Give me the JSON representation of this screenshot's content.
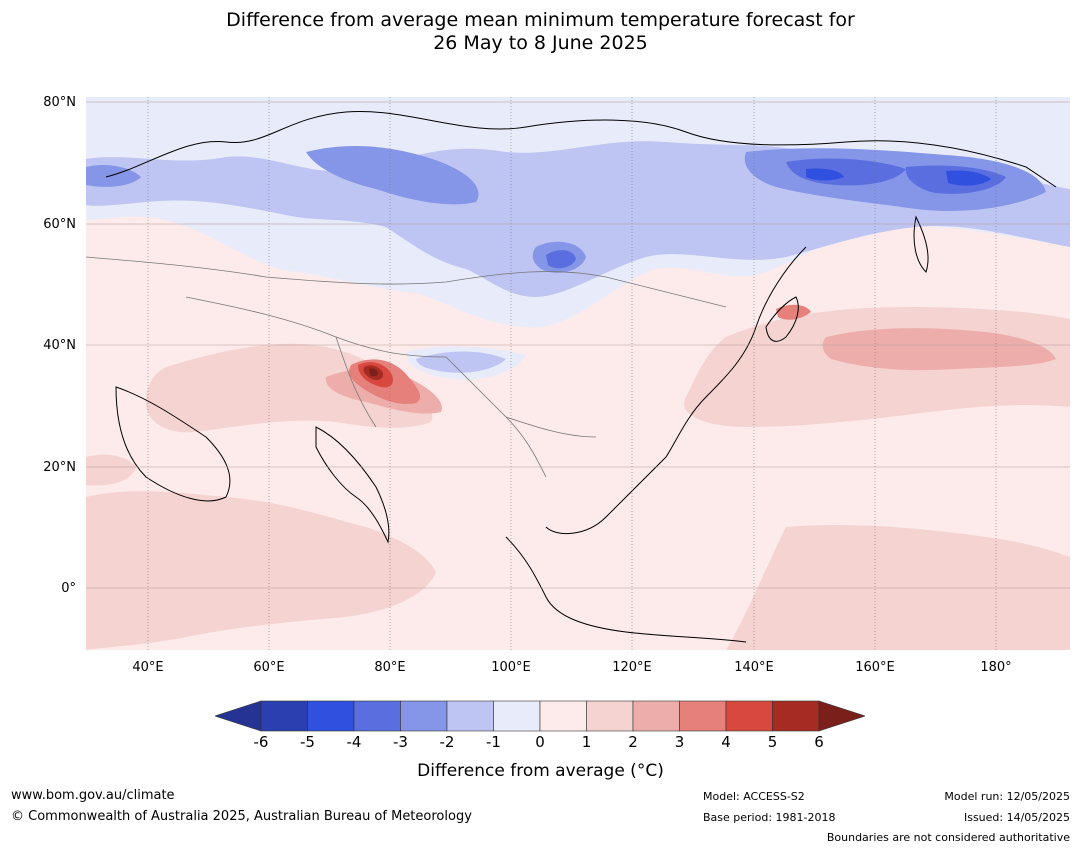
{
  "title": {
    "line1": "Difference from average mean minimum temperature forecast for",
    "line2": "26 May to 8 June 2025"
  },
  "map": {
    "lat_labels": [
      "80°N",
      "60°N",
      "40°N",
      "20°N",
      "0°"
    ],
    "lon_labels": [
      "40°E",
      "60°E",
      "80°E",
      "100°E",
      "120°E",
      "140°E",
      "160°E",
      "180°"
    ],
    "background_color": "#fcebea"
  },
  "colorbar": {
    "ticks": [
      "-6",
      "-5",
      "-4",
      "-3",
      "-2",
      "-1",
      "0",
      "1",
      "2",
      "3",
      "4",
      "5",
      "6"
    ],
    "colors": [
      "#253494",
      "#2c3fb0",
      "#3050df",
      "#5b6ee0",
      "#8595e8",
      "#bec5f2",
      "#e8ebfa",
      "#fcebea",
      "#f5d3d1",
      "#edaeab",
      "#e5807b",
      "#d8483f",
      "#a62b22",
      "#7a1f1a"
    ],
    "label": "Difference from average (°C)",
    "label_text": "Difference from average (",
    "label_unit": "°C",
    "label_close": ")"
  },
  "footer": {
    "website": "www.bom.gov.au/climate",
    "copyright": "© Commonwealth of Australia 2025, Australian Bureau of Meteorology",
    "model": "Model: ACCESS-S2",
    "base_period": "Base period: 1981-2018",
    "model_run": "Model run: 12/05/2025",
    "issued": "Issued: 14/05/2025",
    "disclaimer": "Boundaries are not considered authoritative"
  }
}
